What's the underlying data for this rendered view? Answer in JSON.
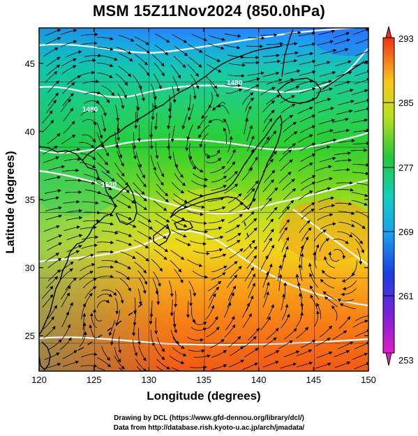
{
  "title": "MSM 15Z11Nov2024 (850.0hPa)",
  "x_axis_label": "Longitude (degrees)",
  "y_axis_label": "Latitude  (degrees)",
  "x_ticks": [
    120,
    125,
    130,
    135,
    140,
    145,
    150
  ],
  "y_ticks": [
    25,
    30,
    35,
    40,
    45
  ],
  "lon_range": [
    120,
    150
  ],
  "lat_range": [
    22.4,
    47.6
  ],
  "colorbar": {
    "labels": [
      "293",
      "285",
      "277",
      "269",
      "261",
      "253"
    ],
    "min": 253,
    "max": 293
  },
  "contour_labels": [
    "1480",
    "1480",
    "1520"
  ],
  "credit_line_1": "Drawing by DCL (https://www.gfd-dennou.org/library/dcl/)",
  "credit_line_2": "Data from http://database.rish.kyoto-u.ac.jp/arch/jmadata/"
}
